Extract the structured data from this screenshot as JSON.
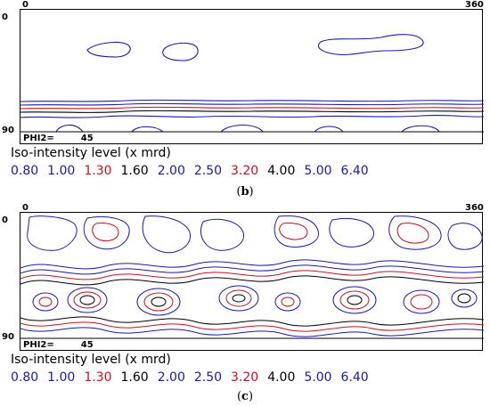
{
  "panels": [
    {
      "id": "b",
      "axis_x_start": "0",
      "axis_x_end": "360",
      "axis_y_start": "0",
      "axis_y_end": "90",
      "phi2_label": "PHI2=",
      "phi2_value": "45",
      "legend_title": "Iso-intensity level (x mrd)",
      "levels": [
        {
          "value": "0.80",
          "color": "#1a1aa8"
        },
        {
          "value": "1.00",
          "color": "#1a1aa8"
        },
        {
          "value": "1.30",
          "color": "#c0141e"
        },
        {
          "value": "1.60",
          "color": "#000000"
        },
        {
          "value": "2.00",
          "color": "#1a1aa8"
        },
        {
          "value": "2.50",
          "color": "#1a1aa8"
        },
        {
          "value": "3.20",
          "color": "#c0141e"
        },
        {
          "value": "4.00",
          "color": "#000000"
        },
        {
          "value": "5.00",
          "color": "#1a1aa8"
        },
        {
          "value": "6.40",
          "color": "#1a1aa8"
        }
      ],
      "caption_open": "(",
      "caption_letter": "b",
      "caption_close": ")"
    },
    {
      "id": "c",
      "axis_x_start": "0",
      "axis_x_end": "360",
      "axis_y_start": "0",
      "axis_y_end": "90",
      "phi2_label": "PHI2=",
      "phi2_value": "45",
      "legend_title": "Iso-intensity level (x mrd)",
      "levels": [
        {
          "value": "0.80",
          "color": "#1a1aa8"
        },
        {
          "value": "1.00",
          "color": "#1a1aa8"
        },
        {
          "value": "1.30",
          "color": "#c0141e"
        },
        {
          "value": "1.60",
          "color": "#000000"
        },
        {
          "value": "2.00",
          "color": "#1a1aa8"
        },
        {
          "value": "2.50",
          "color": "#1a1aa8"
        },
        {
          "value": "3.20",
          "color": "#c0141e"
        },
        {
          "value": "4.00",
          "color": "#000000"
        },
        {
          "value": "5.00",
          "color": "#1a1aa8"
        },
        {
          "value": "6.40",
          "color": "#1a1aa8"
        }
      ],
      "caption_open": "(",
      "caption_letter": "c",
      "caption_close": ")"
    }
  ]
}
